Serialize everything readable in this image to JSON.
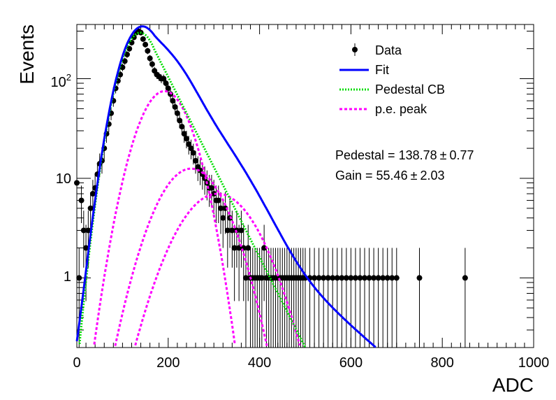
{
  "chart_data": {
    "type": "scatter",
    "title": "",
    "xlabel": "ADC",
    "ylabel": "Events",
    "xlim": [
      0,
      1000
    ],
    "ylim": [
      0.2,
      350
    ],
    "yscale": "log",
    "grid": false,
    "legend_position": "top-right",
    "x_ticks": [
      "0",
      "200",
      "400",
      "600",
      "800",
      "1000"
    ],
    "y_ticks": [
      "1",
      "10",
      "10^2"
    ],
    "legend": [
      {
        "label": "Data",
        "style": "marker-errorbar",
        "color": "#000000"
      },
      {
        "label": "Fit",
        "style": "solid",
        "color": "#0000ff"
      },
      {
        "label": "Pedestal CB",
        "style": "dotted",
        "color": "#00dd00"
      },
      {
        "label": "p.e. peak",
        "style": "dashed",
        "color": "#ff00ff"
      }
    ],
    "annotations": [
      {
        "text": "Pedestal = 138.78",
        "pm": "±",
        "err": "0.77"
      },
      {
        "text": "Gain = 55.46",
        "pm": "±",
        "err": "2.03"
      }
    ],
    "fit_params": {
      "pedestal_mean": 138.78,
      "pedestal_sigma": 35,
      "pedestal_amp": 290,
      "gain": 55.46,
      "pe_peaks": [
        {
          "mean": 192,
          "sigma": 45,
          "amp": 75
        },
        {
          "mean": 250,
          "sigma": 58,
          "amp": 12.5
        },
        {
          "mean": 308,
          "sigma": 68,
          "amp": 7
        }
      ]
    },
    "series": [
      {
        "name": "Data",
        "kind": "points",
        "x": [
          0,
          5,
          10,
          15,
          20,
          25,
          30,
          35,
          40,
          45,
          50,
          55,
          60,
          65,
          70,
          75,
          80,
          85,
          90,
          95,
          100,
          105,
          110,
          115,
          120,
          125,
          130,
          135,
          140,
          145,
          150,
          155,
          160,
          165,
          170,
          175,
          180,
          185,
          190,
          195,
          200,
          205,
          210,
          215,
          220,
          225,
          230,
          235,
          240,
          245,
          250,
          255,
          260,
          265,
          270,
          275,
          280,
          285,
          290,
          295,
          300,
          305,
          310,
          315,
          320,
          325,
          330,
          335,
          340,
          345,
          350,
          355,
          360,
          365,
          370,
          375,
          380,
          385,
          390,
          395,
          400,
          405,
          410,
          415,
          420,
          425,
          430,
          435,
          440,
          445,
          450,
          455,
          460,
          465,
          470,
          475,
          480,
          485,
          490,
          495,
          500,
          510,
          520,
          530,
          540,
          550,
          560,
          570,
          580,
          590,
          600,
          610,
          620,
          630,
          640,
          650,
          660,
          670,
          680,
          690,
          700,
          750,
          850
        ],
        "y": [
          9,
          1,
          6,
          3,
          2,
          3,
          5,
          7,
          8,
          11,
          14,
          15,
          20,
          28,
          35,
          45,
          60,
          80,
          95,
          110,
          130,
          150,
          175,
          200,
          230,
          260,
          290,
          300,
          290,
          250,
          220,
          190,
          160,
          140,
          120,
          110,
          105,
          100,
          100,
          90,
          80,
          70,
          60,
          52,
          45,
          38,
          33,
          28,
          25,
          22,
          20,
          18,
          15,
          13,
          12,
          11,
          10,
          9,
          8,
          8,
          7,
          6,
          6,
          5,
          4,
          5,
          3,
          4,
          3,
          2,
          3,
          2,
          3,
          2,
          1,
          2,
          1,
          1,
          1,
          1,
          1,
          1,
          2,
          1,
          1,
          1,
          1,
          1,
          1,
          1,
          1,
          1,
          1,
          1,
          1,
          1,
          1,
          1,
          1,
          1,
          1,
          1,
          1,
          1,
          1,
          1,
          1,
          1,
          1,
          1,
          1,
          1,
          1,
          1,
          1,
          1,
          1,
          1,
          1,
          1,
          1,
          1,
          1
        ]
      },
      {
        "name": "Fit",
        "kind": "function",
        "color": "#0000ff"
      },
      {
        "name": "Pedestal CB",
        "kind": "function",
        "color": "#00dd00"
      },
      {
        "name": "p.e. peak",
        "kind": "function",
        "color": "#ff00ff"
      }
    ]
  }
}
